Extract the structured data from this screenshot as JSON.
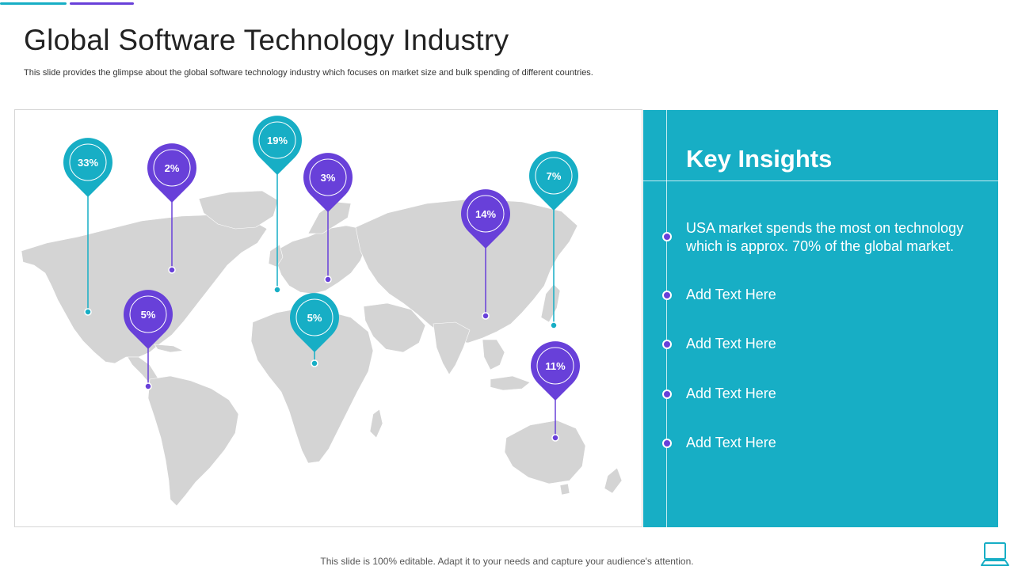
{
  "colors": {
    "teal": "#17aec5",
    "purple": "#6840d9",
    "map_land": "#d4d4d4",
    "panel": "#17aec5"
  },
  "title": "Global Software Technology Industry",
  "subtitle": "This slide provides the glimpse about the global software technology industry which focuses on market size and bulk spending of different countries.",
  "map": {
    "pins": [
      {
        "label": "33%",
        "color": "teal"
      },
      {
        "label": "2%",
        "color": "purple"
      },
      {
        "label": "19%",
        "color": "teal"
      },
      {
        "label": "3%",
        "color": "purple"
      },
      {
        "label": "5%",
        "color": "purple"
      },
      {
        "label": "5%",
        "color": "teal"
      },
      {
        "label": "14%",
        "color": "purple"
      },
      {
        "label": "7%",
        "color": "teal"
      },
      {
        "label": "11%",
        "color": "purple"
      }
    ]
  },
  "insights": {
    "title": "Key Insights",
    "items": [
      "USA market spends the most on technology which is approx. 70% of the global market.",
      "Add Text Here",
      "Add Text Here",
      "Add Text Here",
      "Add Text Here"
    ]
  },
  "footer": "This slide is 100% editable. Adapt it to your needs and capture your audience's attention.",
  "icons": {
    "corner": "laptop-icon"
  }
}
